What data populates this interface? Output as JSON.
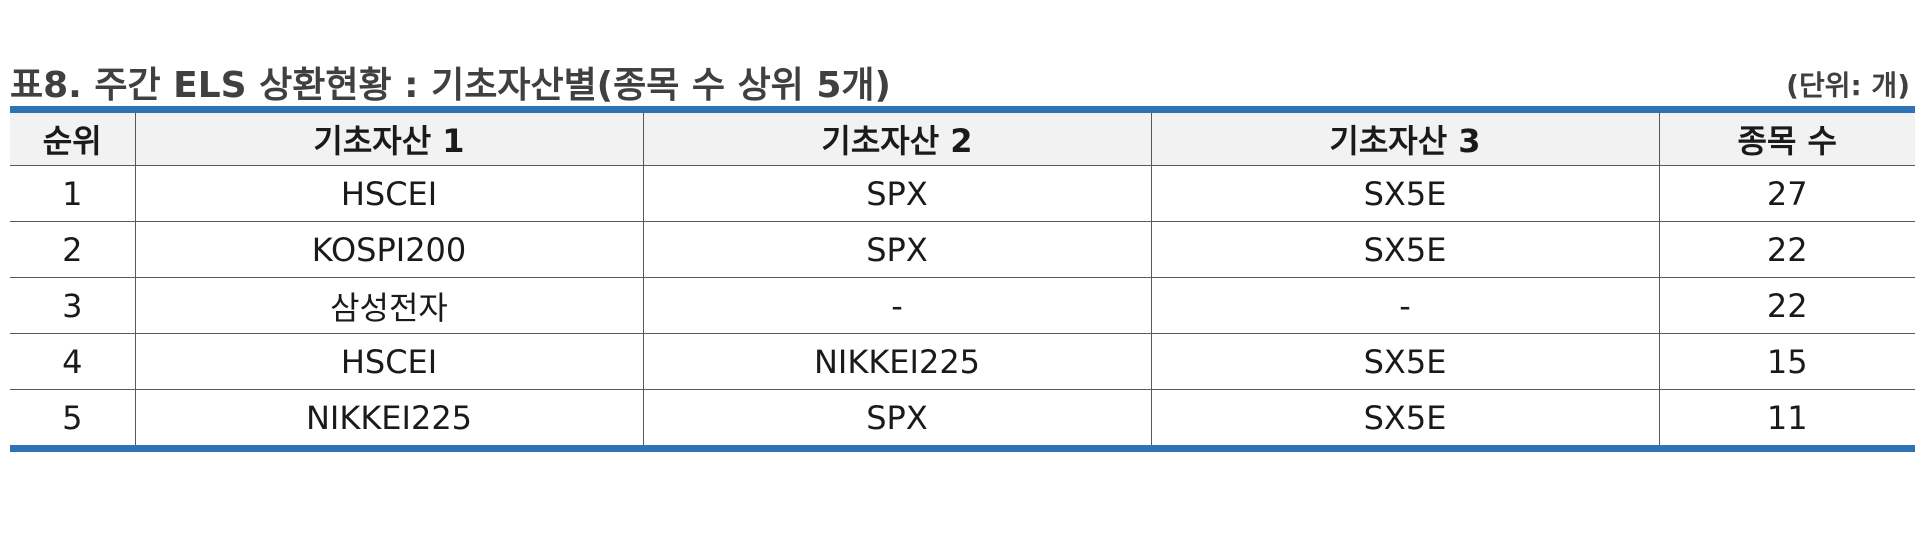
{
  "title": "표8. 주간 ELS 상환현황 : 기초자산별(종목 수 상위 5개)",
  "unit": "(단위: 개)",
  "table": {
    "headers": [
      "순위",
      "기초자산 1",
      "기초자산 2",
      "기초자산 3",
      "종목 수"
    ],
    "rows": [
      [
        "1",
        "HSCEI",
        "SPX",
        "SX5E",
        "27"
      ],
      [
        "2",
        "KOSPI200",
        "SPX",
        "SX5E",
        "22"
      ],
      [
        "3",
        "삼성전자",
        "-",
        "-",
        "22"
      ],
      [
        "4",
        "HSCEI",
        "NIKKEI225",
        "SX5E",
        "15"
      ],
      [
        "5",
        "NIKKEI225",
        "SPX",
        "SX5E",
        "11"
      ]
    ]
  },
  "colors": {
    "accent_rule": "#2e74b5",
    "header_bg": "#f2f2f2",
    "title_text": "#404040"
  }
}
